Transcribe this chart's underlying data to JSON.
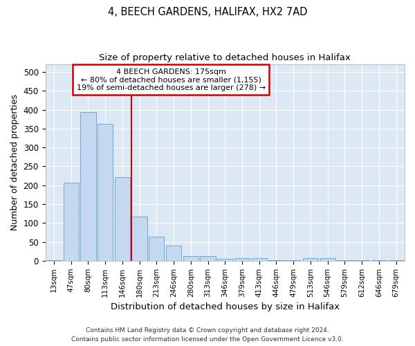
{
  "title1": "4, BEECH GARDENS, HALIFAX, HX2 7AD",
  "title2": "Size of property relative to detached houses in Halifax",
  "xlabel": "Distribution of detached houses by size in Halifax",
  "ylabel": "Number of detached properties",
  "categories": [
    "13sqm",
    "47sqm",
    "80sqm",
    "113sqm",
    "146sqm",
    "180sqm",
    "213sqm",
    "246sqm",
    "280sqm",
    "313sqm",
    "346sqm",
    "379sqm",
    "413sqm",
    "446sqm",
    "479sqm",
    "513sqm",
    "546sqm",
    "579sqm",
    "612sqm",
    "646sqm",
    "679sqm"
  ],
  "values": [
    2,
    207,
    393,
    363,
    222,
    117,
    63,
    40,
    12,
    13,
    6,
    7,
    7,
    2,
    1,
    7,
    7,
    2,
    1,
    1,
    2
  ],
  "bar_color": "#c5d8f0",
  "bar_edge_color": "#6aaad4",
  "vline_color": "#cc0000",
  "annotation_box_color": "#cc0000",
  "annotation_text1": "4 BEECH GARDENS: 175sqm",
  "annotation_text2": "← 80% of detached houses are smaller (1,155)",
  "annotation_text3": "19% of semi-detached houses are larger (278) →",
  "footer1": "Contains HM Land Registry data © Crown copyright and database right 2024.",
  "footer2": "Contains public sector information licensed under the Open Government Licence v3.0.",
  "ylim": [
    0,
    520
  ],
  "fig_background": "#ffffff",
  "plot_background": "#dde8f5",
  "grid_color": "#ffffff"
}
